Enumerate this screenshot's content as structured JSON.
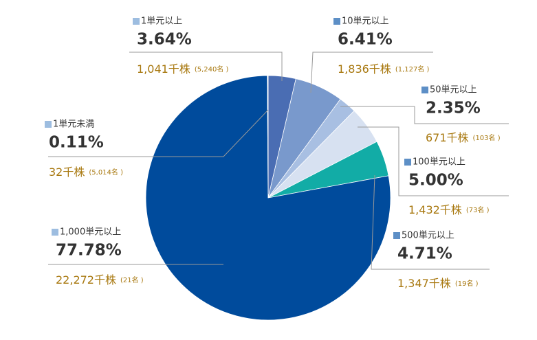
{
  "chart_data": {
    "type": "pie",
    "categories": [
      "1単元以上",
      "10単元以上",
      "50単元以上",
      "100単元以上",
      "500単元以上",
      "1,000単元以上",
      "1単元未満"
    ],
    "values": [
      3.64,
      6.41,
      2.35,
      5.0,
      4.71,
      77.78,
      0.11
    ],
    "value_labels": [
      "3.64%",
      "6.41%",
      "2.35%",
      "5.00%",
      "4.71%",
      "77.78%",
      "0.11%"
    ],
    "shares_labels": [
      "1,041千株",
      "1,836千株",
      "671千株",
      "1,432千株",
      "1,347千株",
      "22,272千株",
      "32千株"
    ],
    "holder_labels": [
      "(5,240名 )",
      "(1,127名 )",
      "(103名 )",
      "(73名 )",
      "(19名 )",
      "(21名 )",
      "(5,014名 )"
    ],
    "colors": [
      "#4a6db3",
      "#7999cc",
      "#a8bfe2",
      "#d7e1f1",
      "#12aca6",
      "#004b9c",
      "#ffffff"
    ],
    "marker_colors": [
      "#9dbde0",
      "#5d8fc6",
      "#5d8fc6",
      "#5d8fc6",
      "#5d8fc6",
      "#9dbde0",
      "#9dbde0"
    ]
  }
}
